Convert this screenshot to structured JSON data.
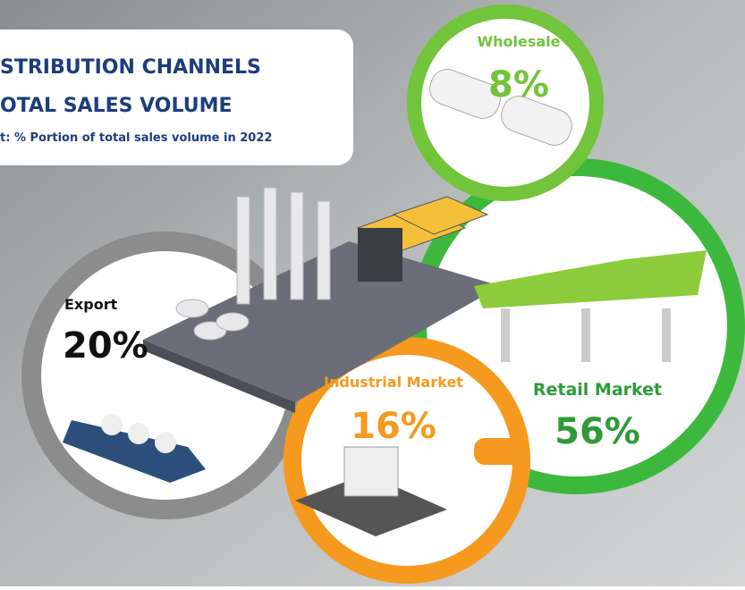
{
  "header": {
    "title_line1": "STRIBUTION CHANNELS",
    "title_line2": "OTAL SALES VOLUME",
    "subtitle": "t: % Portion of total sales volume in 2022"
  },
  "channels": [
    {
      "label": "Wholesale",
      "share": "8%"
    },
    {
      "label": "Export",
      "share": "20%"
    },
    {
      "label": "Industrial Market",
      "share": "16%"
    },
    {
      "label": "Retail Market",
      "share": "56%"
    }
  ]
}
